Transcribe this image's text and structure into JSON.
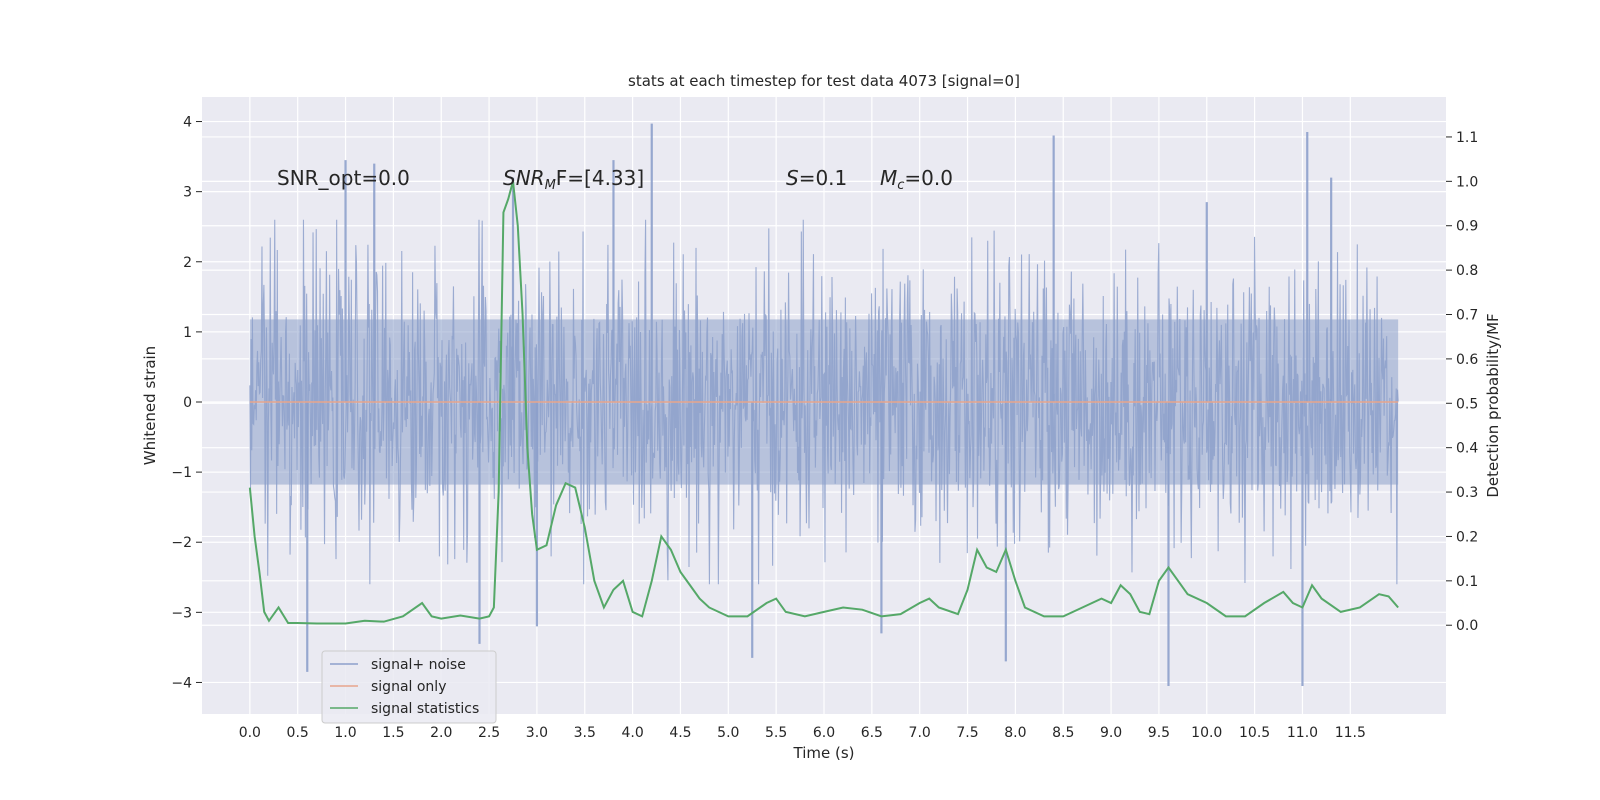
{
  "chart_data": {
    "type": "line",
    "title": "stats at each timestep for test data 4073 [signal=0]",
    "xlabel": "Time (s)",
    "ylabel": "Whitened strain",
    "ylabel_right": "Detection probability/MF",
    "xlim": [
      -0.5,
      12.5
    ],
    "ylim": [
      -4.45,
      4.35
    ],
    "ylim_right": [
      -0.2,
      1.19
    ],
    "x_ticks": [
      0.0,
      0.5,
      1.0,
      1.5,
      2.0,
      2.5,
      3.0,
      3.5,
      4.0,
      4.5,
      5.0,
      5.5,
      6.0,
      6.5,
      7.0,
      7.5,
      8.0,
      8.5,
      9.0,
      9.5,
      10.0,
      10.5,
      11.0,
      11.5
    ],
    "x_tick_labels": [
      "0.0",
      "0.5",
      "1.0",
      "1.5",
      "2.0",
      "2.5",
      "3.0",
      "3.5",
      "4.0",
      "4.5",
      "5.0",
      "5.5",
      "6.0",
      "6.5",
      "7.0",
      "7.5",
      "8.0",
      "8.5",
      "9.0",
      "9.5",
      "10.0",
      "10.5",
      "11.0",
      "11.5"
    ],
    "y_ticks": [
      -4,
      -3,
      -2,
      -1,
      0,
      1,
      2,
      3,
      4
    ],
    "y_tick_labels": [
      "−4",
      "−3",
      "−2",
      "−1",
      "0",
      "1",
      "2",
      "3",
      "4"
    ],
    "y_ticks_right": [
      0.0,
      0.1,
      0.2,
      0.3,
      0.4,
      0.5,
      0.6,
      0.7,
      0.8,
      0.9,
      1.0,
      1.1
    ],
    "y_tick_labels_right": [
      "0.0",
      "0.1",
      "0.2",
      "0.3",
      "0.4",
      "0.5",
      "0.6",
      "0.7",
      "0.8",
      "0.9",
      "1.0",
      "1.1"
    ],
    "grid": true,
    "legend_position": "lower-left",
    "annotations": {
      "snr_opt": "SNR_opt=0.0",
      "snr_mf_main": "SNR",
      "snr_mf_sub": "M",
      "snr_mf_rest": "F=[4.33]",
      "s_main": "S",
      "s_rest": "=0.1",
      "mc_main": "M",
      "mc_sub": "c",
      "mc_rest": "=0.0"
    },
    "series": [
      {
        "name": "signal+ noise",
        "color": "#8da0cb",
        "axis": "left",
        "x_range": [
          0.0,
          12.0
        ],
        "envelope_typical": 1.9,
        "min": -4.05,
        "max": 3.97,
        "spikes": [
          [
            0.6,
            -3.2
          ],
          [
            0.6,
            -3.85
          ],
          [
            1.0,
            3.45
          ],
          [
            1.3,
            3.4
          ],
          [
            2.4,
            -3.45
          ],
          [
            2.75,
            3.2
          ],
          [
            3.0,
            -3.2
          ],
          [
            3.8,
            3.45
          ],
          [
            4.2,
            3.97
          ],
          [
            5.25,
            -3.65
          ],
          [
            7.9,
            -3.7
          ],
          [
            8.4,
            3.8
          ],
          [
            9.6,
            -4.05
          ],
          [
            11.0,
            -4.05
          ],
          [
            11.05,
            3.85
          ],
          [
            10.0,
            2.85
          ],
          [
            11.3,
            3.2
          ],
          [
            6.6,
            -3.3
          ]
        ]
      },
      {
        "name": "signal only",
        "color": "#e8a58c",
        "axis": "left",
        "x": [
          0.0,
          12.0
        ],
        "y": [
          0.0,
          0.0
        ]
      },
      {
        "name": "signal statistics",
        "color": "#55a868",
        "axis": "right",
        "x": [
          0.0,
          0.05,
          0.1,
          0.15,
          0.2,
          0.3,
          0.4,
          0.5,
          0.7,
          1.0,
          1.2,
          1.4,
          1.6,
          1.8,
          1.9,
          2.0,
          2.2,
          2.4,
          2.5,
          2.55,
          2.6,
          2.65,
          2.7,
          2.75,
          2.8,
          2.85,
          2.9,
          2.95,
          3.0,
          3.1,
          3.2,
          3.3,
          3.4,
          3.5,
          3.6,
          3.7,
          3.8,
          3.9,
          4.0,
          4.1,
          4.2,
          4.3,
          4.4,
          4.5,
          4.6,
          4.7,
          4.8,
          5.0,
          5.2,
          5.4,
          5.5,
          5.6,
          5.8,
          6.0,
          6.2,
          6.4,
          6.6,
          6.8,
          7.0,
          7.1,
          7.2,
          7.4,
          7.5,
          7.6,
          7.7,
          7.8,
          7.9,
          8.0,
          8.1,
          8.3,
          8.5,
          8.7,
          8.9,
          9.0,
          9.1,
          9.2,
          9.3,
          9.4,
          9.5,
          9.6,
          9.7,
          9.8,
          10.0,
          10.2,
          10.4,
          10.6,
          10.8,
          10.9,
          11.0,
          11.1,
          11.2,
          11.4,
          11.6,
          11.8,
          11.9,
          12.0
        ],
        "y": [
          0.31,
          0.2,
          0.12,
          0.03,
          0.01,
          0.04,
          0.005,
          0.005,
          0.004,
          0.004,
          0.01,
          0.008,
          0.02,
          0.05,
          0.02,
          0.015,
          0.022,
          0.015,
          0.02,
          0.04,
          0.3,
          0.93,
          0.96,
          1.0,
          0.9,
          0.7,
          0.4,
          0.25,
          0.17,
          0.18,
          0.27,
          0.32,
          0.31,
          0.22,
          0.1,
          0.04,
          0.08,
          0.1,
          0.03,
          0.02,
          0.1,
          0.2,
          0.17,
          0.12,
          0.09,
          0.06,
          0.04,
          0.02,
          0.02,
          0.05,
          0.06,
          0.03,
          0.02,
          0.03,
          0.04,
          0.035,
          0.02,
          0.025,
          0.05,
          0.06,
          0.04,
          0.025,
          0.08,
          0.17,
          0.13,
          0.12,
          0.17,
          0.1,
          0.04,
          0.02,
          0.02,
          0.04,
          0.06,
          0.05,
          0.09,
          0.07,
          0.03,
          0.025,
          0.1,
          0.13,
          0.1,
          0.07,
          0.05,
          0.02,
          0.02,
          0.05,
          0.075,
          0.05,
          0.04,
          0.09,
          0.06,
          0.03,
          0.04,
          0.07,
          0.065,
          0.04
        ]
      }
    ]
  }
}
